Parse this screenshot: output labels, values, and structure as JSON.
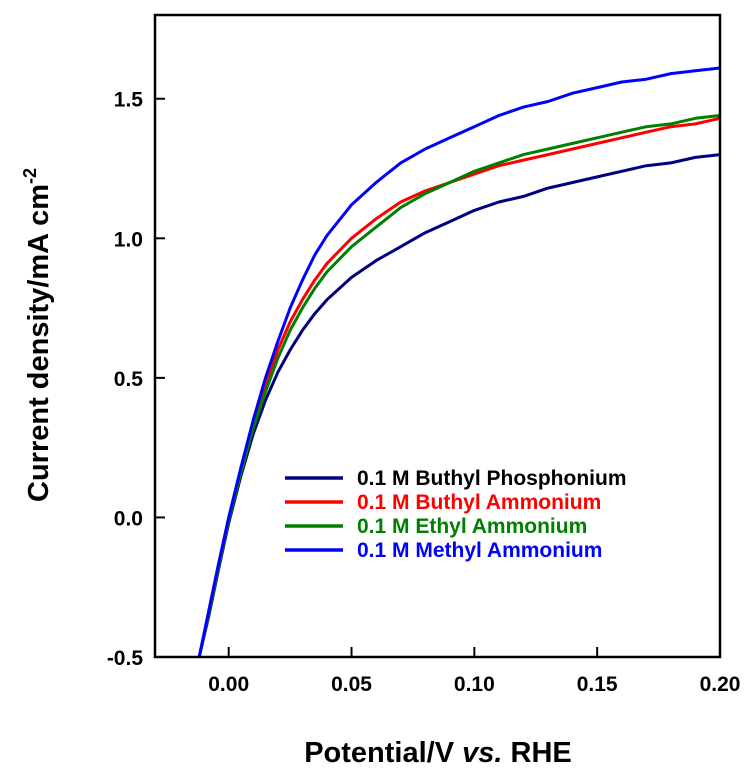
{
  "chart_data": {
    "type": "line",
    "xlabel_parts": {
      "pre": "Potential/V ",
      "italic": "vs.",
      "post": " RHE"
    },
    "ylabel_parts": {
      "main": "Current density/mA cm",
      "sup": "-2"
    },
    "xlim": [
      -0.03,
      0.2
    ],
    "ylim": [
      -0.5,
      1.8
    ],
    "x_ticks": [
      {
        "value": 0.0,
        "label": "0.00"
      },
      {
        "value": 0.05,
        "label": "0.05"
      },
      {
        "value": 0.1,
        "label": "0.10"
      },
      {
        "value": 0.15,
        "label": "0.15"
      },
      {
        "value": 0.2,
        "label": "0.20"
      }
    ],
    "y_ticks": [
      {
        "value": -0.5,
        "label": "-0.5"
      },
      {
        "value": 0.0,
        "label": "0.0"
      },
      {
        "value": 0.5,
        "label": "0.5"
      },
      {
        "value": 1.0,
        "label": "1.0"
      },
      {
        "value": 1.5,
        "label": "1.5"
      }
    ],
    "grid": false,
    "legend_position": "bottom-right",
    "series": [
      {
        "name": "0.1 M Buthyl Phosphonium",
        "color": "#000080",
        "points": [
          [
            -0.012,
            -0.5
          ],
          [
            -0.008,
            -0.35
          ],
          [
            -0.004,
            -0.18
          ],
          [
            0.0,
            -0.02
          ],
          [
            0.005,
            0.15
          ],
          [
            0.01,
            0.3
          ],
          [
            0.015,
            0.42
          ],
          [
            0.02,
            0.52
          ],
          [
            0.025,
            0.6
          ],
          [
            0.03,
            0.67
          ],
          [
            0.035,
            0.73
          ],
          [
            0.04,
            0.78
          ],
          [
            0.05,
            0.86
          ],
          [
            0.06,
            0.92
          ],
          [
            0.07,
            0.97
          ],
          [
            0.08,
            1.02
          ],
          [
            0.09,
            1.06
          ],
          [
            0.1,
            1.1
          ],
          [
            0.11,
            1.13
          ],
          [
            0.12,
            1.15
          ],
          [
            0.13,
            1.18
          ],
          [
            0.14,
            1.2
          ],
          [
            0.15,
            1.22
          ],
          [
            0.16,
            1.24
          ],
          [
            0.17,
            1.26
          ],
          [
            0.18,
            1.27
          ],
          [
            0.19,
            1.29
          ],
          [
            0.2,
            1.3
          ]
        ]
      },
      {
        "name": "0.1 M Buthyl Ammonium",
        "color": "#ff0000",
        "points": [
          [
            -0.012,
            -0.5
          ],
          [
            -0.008,
            -0.34
          ],
          [
            -0.004,
            -0.17
          ],
          [
            0.0,
            -0.01
          ],
          [
            0.005,
            0.17
          ],
          [
            0.01,
            0.33
          ],
          [
            0.015,
            0.47
          ],
          [
            0.02,
            0.6
          ],
          [
            0.025,
            0.7
          ],
          [
            0.03,
            0.78
          ],
          [
            0.035,
            0.85
          ],
          [
            0.04,
            0.91
          ],
          [
            0.05,
            1.0
          ],
          [
            0.06,
            1.07
          ],
          [
            0.07,
            1.13
          ],
          [
            0.08,
            1.17
          ],
          [
            0.09,
            1.2
          ],
          [
            0.1,
            1.23
          ],
          [
            0.11,
            1.26
          ],
          [
            0.12,
            1.28
          ],
          [
            0.13,
            1.3
          ],
          [
            0.14,
            1.32
          ],
          [
            0.15,
            1.34
          ],
          [
            0.16,
            1.36
          ],
          [
            0.17,
            1.38
          ],
          [
            0.18,
            1.4
          ],
          [
            0.19,
            1.41
          ],
          [
            0.2,
            1.43
          ]
        ]
      },
      {
        "name": "0.1 M Ethyl Ammonium",
        "color": "#008000",
        "points": [
          [
            -0.012,
            -0.5
          ],
          [
            -0.008,
            -0.34
          ],
          [
            -0.004,
            -0.17
          ],
          [
            0.0,
            -0.01
          ],
          [
            0.005,
            0.16
          ],
          [
            0.01,
            0.32
          ],
          [
            0.015,
            0.45
          ],
          [
            0.02,
            0.57
          ],
          [
            0.025,
            0.67
          ],
          [
            0.03,
            0.75
          ],
          [
            0.035,
            0.82
          ],
          [
            0.04,
            0.88
          ],
          [
            0.05,
            0.97
          ],
          [
            0.06,
            1.04
          ],
          [
            0.07,
            1.11
          ],
          [
            0.08,
            1.16
          ],
          [
            0.09,
            1.2
          ],
          [
            0.1,
            1.24
          ],
          [
            0.11,
            1.27
          ],
          [
            0.12,
            1.3
          ],
          [
            0.13,
            1.32
          ],
          [
            0.14,
            1.34
          ],
          [
            0.15,
            1.36
          ],
          [
            0.16,
            1.38
          ],
          [
            0.17,
            1.4
          ],
          [
            0.18,
            1.41
          ],
          [
            0.19,
            1.43
          ],
          [
            0.2,
            1.44
          ]
        ]
      },
      {
        "name": "0.1 M Methyl Ammonium",
        "color": "#0000ff",
        "points": [
          [
            -0.012,
            -0.5
          ],
          [
            -0.008,
            -0.33
          ],
          [
            -0.004,
            -0.16
          ],
          [
            0.0,
            0.0
          ],
          [
            0.005,
            0.18
          ],
          [
            0.01,
            0.35
          ],
          [
            0.015,
            0.5
          ],
          [
            0.02,
            0.63
          ],
          [
            0.025,
            0.75
          ],
          [
            0.03,
            0.85
          ],
          [
            0.035,
            0.94
          ],
          [
            0.04,
            1.01
          ],
          [
            0.05,
            1.12
          ],
          [
            0.06,
            1.2
          ],
          [
            0.07,
            1.27
          ],
          [
            0.08,
            1.32
          ],
          [
            0.09,
            1.36
          ],
          [
            0.1,
            1.4
          ],
          [
            0.11,
            1.44
          ],
          [
            0.12,
            1.47
          ],
          [
            0.13,
            1.49
          ],
          [
            0.14,
            1.52
          ],
          [
            0.15,
            1.54
          ],
          [
            0.16,
            1.56
          ],
          [
            0.17,
            1.57
          ],
          [
            0.18,
            1.59
          ],
          [
            0.19,
            1.6
          ],
          [
            0.2,
            1.61
          ]
        ]
      }
    ]
  }
}
